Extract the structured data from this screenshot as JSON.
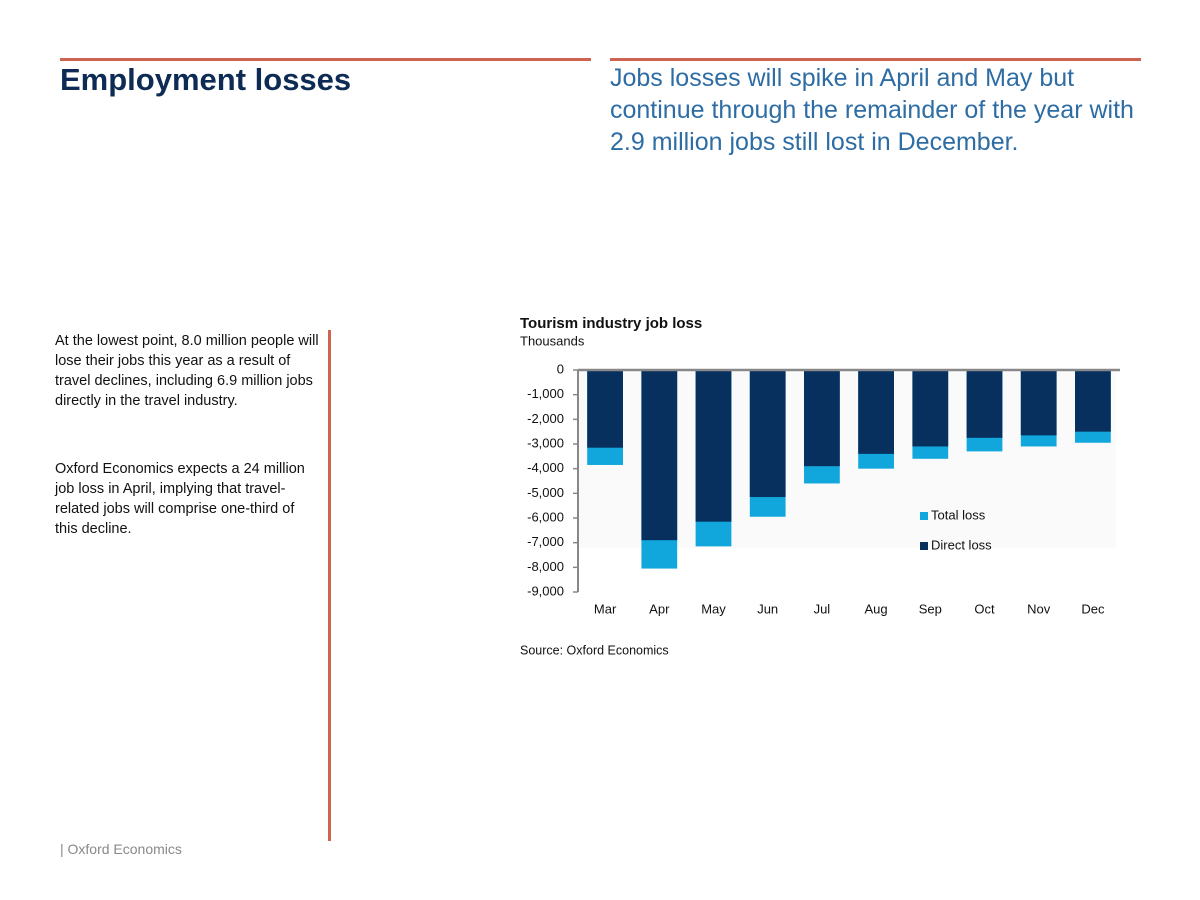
{
  "header": {
    "title": "Employment losses",
    "subtitle": "Jobs losses will spike in April and May but continue through the remainder of the year with 2.9 million jobs still lost in December."
  },
  "body": [
    "At the lowest point, 8.0 million people will lose their jobs this year as a result of travel declines, including 6.9 million jobs directly in the travel industry.",
    "Oxford Economics expects a 24 million job loss in April, implying that travel-related jobs will comprise one-third of this decline."
  ],
  "footer": "| Oxford Economics",
  "chart_data": {
    "type": "bar",
    "title": "Tourism industry job loss",
    "y_label": "Thousands",
    "source": "Source: Oxford Economics",
    "categories": [
      "Mar",
      "Apr",
      "May",
      "Jun",
      "Jul",
      "Aug",
      "Sep",
      "Oct",
      "Nov",
      "Dec"
    ],
    "series": [
      {
        "name": "Total loss",
        "color": "#12a7dc",
        "values": [
          -3850,
          -8050,
          -7150,
          -5950,
          -4600,
          -4000,
          -3600,
          -3300,
          -3100,
          -2950
        ]
      },
      {
        "name": "Direct loss",
        "color": "#07305f",
        "values": [
          -3150,
          -6900,
          -6150,
          -5150,
          -3900,
          -3400,
          -3100,
          -2750,
          -2650,
          -2500
        ]
      }
    ],
    "ylim": [
      -9000,
      0
    ],
    "yticks": [
      0,
      {
        "value": -1000,
        "label": "-1,000"
      },
      {
        "value": -2000,
        "label": "-2,000"
      },
      {
        "value": -3000,
        "label": "-3,000"
      },
      {
        "value": -4000,
        "label": "-4,000"
      },
      {
        "value": -5000,
        "label": "-5,000"
      },
      {
        "value": -6000,
        "label": "-6,000"
      },
      {
        "value": -7000,
        "label": "-7,000"
      },
      {
        "value": -8000,
        "label": "-8,000"
      },
      {
        "value": -9000,
        "label": "-9,000"
      }
    ],
    "legend": "lower right",
    "grid": false
  }
}
